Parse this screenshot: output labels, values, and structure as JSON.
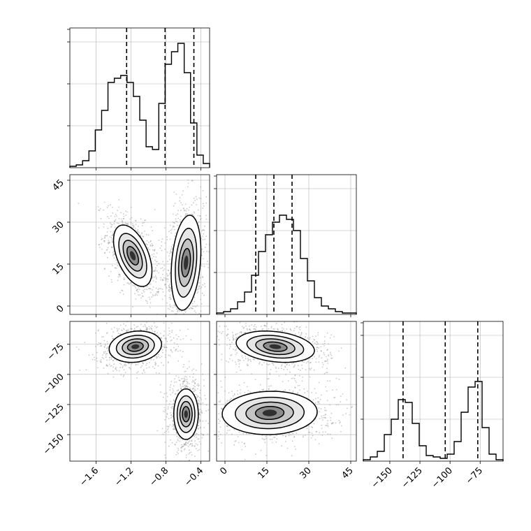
{
  "chart_data": {
    "type": "corner",
    "grid": true,
    "parameters": [
      {
        "range": [
          -1.9,
          -0.3
        ],
        "ticks": [
          -1.6,
          -1.2,
          -0.8,
          -0.4
        ],
        "tick_labels": [
          "−1.6",
          "−1.2",
          "−0.8",
          "−0.4"
        ],
        "quantiles": [
          -1.25,
          -0.81,
          -0.48
        ],
        "hist": [
          0.01,
          0.02,
          0.05,
          0.12,
          0.27,
          0.41,
          0.61,
          0.64,
          0.66,
          0.61,
          0.51,
          0.34,
          0.15,
          0.13,
          0.46,
          0.74,
          0.83,
          0.89,
          0.68,
          0.32,
          0.09,
          0.03
        ]
      },
      {
        "range": [
          -3,
          47
        ],
        "ticks": [
          0,
          15,
          30,
          45
        ],
        "tick_labels": [
          "0",
          "15",
          "30",
          "45"
        ],
        "quantiles": [
          11,
          17.5,
          24
        ],
        "hist": [
          0.01,
          0.02,
          0.04,
          0.09,
          0.16,
          0.28,
          0.45,
          0.57,
          0.66,
          0.71,
          0.68,
          0.6,
          0.4,
          0.24,
          0.12,
          0.06,
          0.04,
          0.02,
          0.01,
          0.01
        ]
      },
      {
        "range": [
          -172,
          -56
        ],
        "ticks": [
          -150,
          -125,
          -100,
          -75
        ],
        "tick_labels": [
          "−150",
          "−125",
          "−100",
          "−75"
        ],
        "quantiles": [
          -139,
          -104,
          -77
        ],
        "hist": [
          0.01,
          0.03,
          0.07,
          0.19,
          0.3,
          0.44,
          0.42,
          0.27,
          0.11,
          0.04,
          0.03,
          0.02,
          0.05,
          0.14,
          0.35,
          0.53,
          0.57,
          0.24,
          0.05,
          0.01
        ]
      }
    ],
    "hist_ylim": [
      0,
      1
    ],
    "hist_yticks": [
      0.3,
      0.6,
      0.9
    ],
    "pairs": [
      {
        "row": 1,
        "col": 0,
        "modes": [
          {
            "x": -1.18,
            "y": 18,
            "sx": 0.11,
            "sy": 5.5,
            "rho": -0.5,
            "levels": [
              [
                0.22,
                0.5
              ],
              [
                0.13,
                0.3
              ],
              [
                0.06,
                0.16
              ]
            ]
          },
          {
            "x": -0.57,
            "y": 15.5,
            "sx": 0.085,
            "sy": 8.5,
            "rho": 0.25,
            "levels": [
              [
                0.24,
                0.5
              ],
              [
                0.14,
                0.3
              ],
              [
                0.06,
                0.15
              ]
            ]
          }
        ]
      },
      {
        "row": 2,
        "col": 0,
        "modes": [
          {
            "x": -1.15,
            "y": -77,
            "sx": 0.15,
            "sy": 6.5,
            "rho": 0.15,
            "levels": [
              [
                0.2,
                0.5
              ],
              [
                0.12,
                0.3
              ],
              [
                0.05,
                0.15
              ]
            ]
          },
          {
            "x": -0.57,
            "y": -133,
            "sx": 0.07,
            "sy": 10.5,
            "rho": 0.0,
            "levels": [
              [
                0.26,
                0.5
              ],
              [
                0.15,
                0.3
              ],
              [
                0.06,
                0.16
              ]
            ]
          }
        ]
      },
      {
        "row": 2,
        "col": 1,
        "modes": [
          {
            "x": 18,
            "y": -77,
            "sx": 7,
            "sy": 6.5,
            "rho": -0.25,
            "levels": [
              [
                0.22,
                0.5
              ],
              [
                0.13,
                0.3
              ],
              [
                0.06,
                0.16
              ]
            ]
          },
          {
            "x": 16,
            "y": -132,
            "sx": 8.5,
            "sy": 9,
            "rho": 0.05,
            "levels": [
              [
                0.23,
                0.5
              ],
              [
                0.12,
                0.3
              ]
            ]
          }
        ]
      }
    ]
  }
}
